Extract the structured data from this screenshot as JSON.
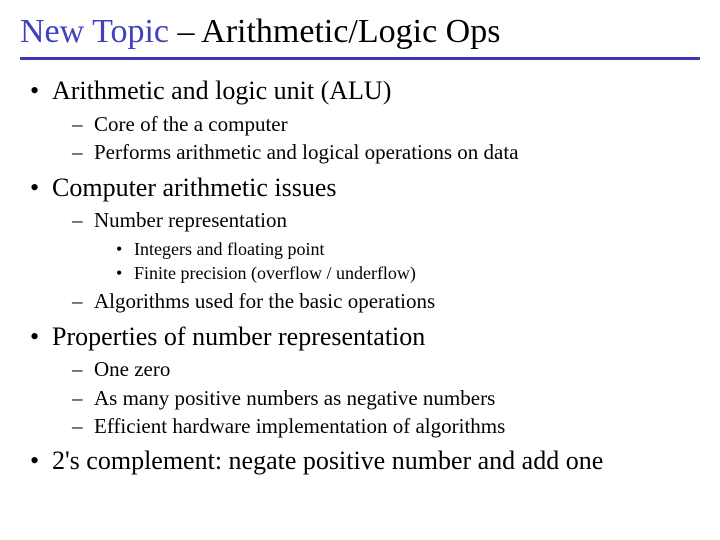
{
  "title": {
    "accent_text": "New Topic",
    "rest_text": " – Arithmetic/Logic Ops",
    "accent_color": "#4040c0",
    "rest_color": "#000000",
    "accent_font": "Comic Sans MS",
    "fontsize": 34
  },
  "rule_color": "#3838b8",
  "background_color": "#ffffff",
  "body_font": "Times New Roman",
  "bullets": {
    "b1": "Arithmetic and logic unit (ALU)",
    "b1_1": "Core of the a computer",
    "b1_2": "Performs arithmetic and logical operations on data",
    "b2": "Computer arithmetic issues",
    "b2_1": "Number representation",
    "b2_1_1": "Integers and floating point",
    "b2_1_2": "Finite precision (overflow / underflow)",
    "b2_2": "Algorithms used for the basic operations",
    "b3": "Properties of number representation",
    "b3_1": "One zero",
    "b3_2": "As many positive numbers as negative numbers",
    "b3_3": "Efficient hardware implementation of algorithms",
    "b4": "2's complement: negate positive number and add one"
  },
  "font_sizes": {
    "lvl1": 26,
    "lvl2": 21,
    "lvl3": 18
  }
}
